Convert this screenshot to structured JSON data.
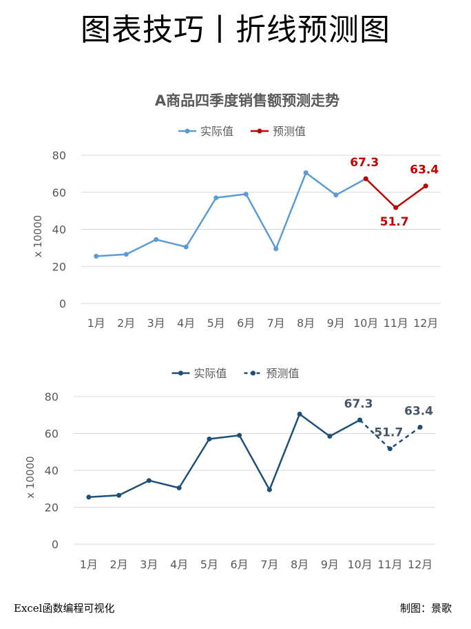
{
  "page": {
    "title": "图表技巧丨折线预测图",
    "footer_left": "Excel函数编程可视化",
    "footer_right": "制图：景歌"
  },
  "colors": {
    "chart1_actual": "#5b9bd5",
    "chart1_forecast": "#c00000",
    "chart2_line": "#1f4e79",
    "chart2_label": "#44546a"
  },
  "chart_data": [
    {
      "type": "line",
      "title": "A商品四季度销售额预测走势",
      "ylabel": "x 10000",
      "ylim": [
        0,
        80
      ],
      "yticks": [
        0,
        20,
        40,
        60,
        80
      ],
      "categories": [
        "1月",
        "2月",
        "3月",
        "4月",
        "5月",
        "6月",
        "7月",
        "8月",
        "9月",
        "10月",
        "11月",
        "12月"
      ],
      "legend": "top",
      "grid": true,
      "series": [
        {
          "name": "实际值",
          "style": "solid",
          "values": [
            25.5,
            26.5,
            34.5,
            30.5,
            57,
            59,
            29.5,
            70.5,
            58.5,
            67.3,
            null,
            null
          ]
        },
        {
          "name": "预测值",
          "style": "solid",
          "values": [
            null,
            null,
            null,
            null,
            null,
            null,
            null,
            null,
            null,
            67.3,
            51.7,
            63.4
          ]
        }
      ],
      "data_labels": [
        {
          "category": "10月",
          "text": "67.3"
        },
        {
          "category": "11月",
          "text": "51.7"
        },
        {
          "category": "12月",
          "text": "63.4"
        }
      ]
    },
    {
      "type": "line",
      "title": "",
      "ylabel": "x 10000",
      "ylim": [
        0,
        80
      ],
      "yticks": [
        0,
        20,
        40,
        60,
        80
      ],
      "categories": [
        "1月",
        "2月",
        "3月",
        "4月",
        "5月",
        "6月",
        "7月",
        "8月",
        "9月",
        "10月",
        "11月",
        "12月"
      ],
      "legend": "top",
      "grid": true,
      "series": [
        {
          "name": "实际值",
          "style": "solid",
          "values": [
            25.5,
            26.5,
            34.5,
            30.5,
            57,
            59,
            29.5,
            70.5,
            58.5,
            67.3,
            null,
            null
          ]
        },
        {
          "name": "预测值",
          "style": "dashed",
          "values": [
            null,
            null,
            null,
            null,
            null,
            null,
            null,
            null,
            null,
            67.3,
            51.7,
            63.4
          ]
        }
      ],
      "data_labels": [
        {
          "category": "10月",
          "text": "67.3"
        },
        {
          "category": "11月",
          "text": "51.7"
        },
        {
          "category": "12月",
          "text": "63.4"
        }
      ]
    }
  ]
}
